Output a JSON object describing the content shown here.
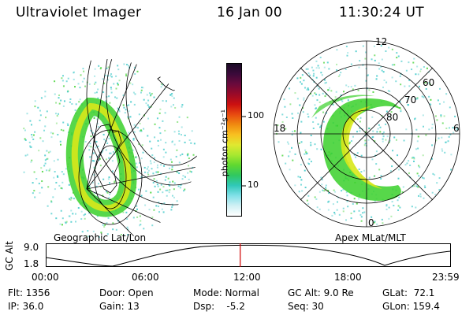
{
  "header": {
    "instrument": "Ultraviolet Imager",
    "date": "16 Jan 00",
    "time": "11:30:24 UT"
  },
  "colors": {
    "aurora_green": "#39d02a",
    "aurora_yellow": "#d8e81a",
    "aurora_cyan": "#35c6c6",
    "marker_red": "#d00000"
  },
  "left_panel": {
    "label": "Geographic Lat/Lon"
  },
  "right_panel": {
    "label": "Apex MLat/MLT",
    "mlt_labels": {
      "top": "12",
      "left": "18",
      "right": "6",
      "bottom": "0"
    },
    "mlat_labels": [
      "60",
      "70",
      "80"
    ]
  },
  "colorbar": {
    "unit_label": "photon cm⁻²s⁻¹",
    "ticks": [
      "100",
      "10"
    ],
    "colors": [
      "#1a0b26",
      "#3b0a3a",
      "#6a0a3c",
      "#9a0a28",
      "#cc1010",
      "#e84a10",
      "#f08a10",
      "#f8c020",
      "#e0e830",
      "#a8e830",
      "#60d830",
      "#30c860",
      "#30c8b8",
      "#80e0e8",
      "#d0f0f4",
      "#ffffff"
    ]
  },
  "timeline": {
    "axis_label": "GC Alt",
    "y_ticks": [
      "9.0",
      "1.8"
    ],
    "x_ticks": [
      "00:00",
      "06:00",
      "12:00",
      "18:00",
      "23:59"
    ],
    "current_time_fraction": 0.48
  },
  "info": {
    "flt": "Flt: 1356",
    "ip": "IP: 36.0",
    "door": "Door: Open",
    "gain": "Gain: 13",
    "mode": "Mode: Normal",
    "dsp": "Dsp:    -5.2",
    "gc_alt": "GC Alt: 9.0 Re",
    "seq": "Seq: 30",
    "glat": "GLat:  72.1",
    "glon": "GLon: 159.4"
  }
}
